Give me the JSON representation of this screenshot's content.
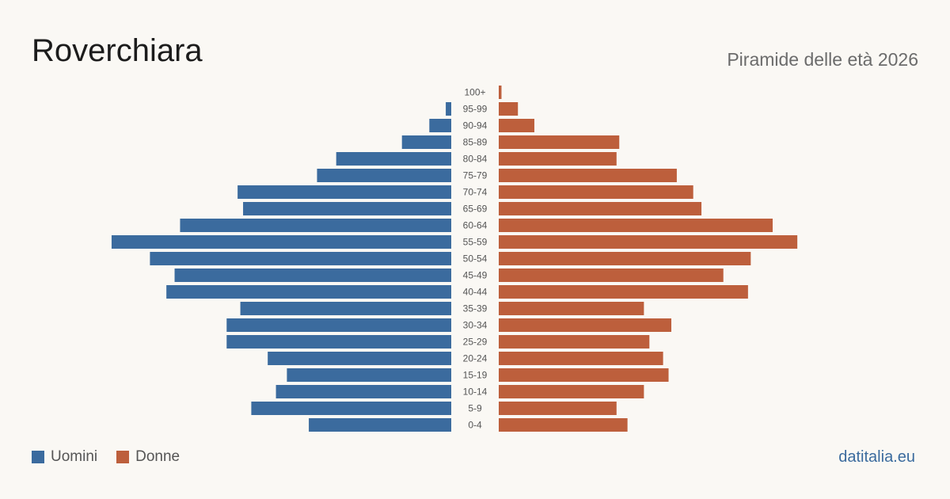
{
  "header": {
    "title": "Roverchiara",
    "subtitle": "Piramide delle età 2026"
  },
  "legend": {
    "men_label": "Uomini",
    "women_label": "Donne"
  },
  "footer": {
    "brand": "datitalia.eu"
  },
  "colors": {
    "men": "#3b6b9e",
    "women": "#bd5f3c",
    "label": "#555555"
  },
  "chart_data": {
    "type": "bar",
    "orientation": "horizontal-pyramid",
    "title": "Roverchiara",
    "subtitle": "Piramide delle età 2026",
    "categories": [
      "100+",
      "95-99",
      "90-94",
      "85-89",
      "80-84",
      "75-79",
      "70-74",
      "65-69",
      "60-64",
      "55-59",
      "50-54",
      "45-49",
      "40-44",
      "35-39",
      "30-34",
      "25-29",
      "20-24",
      "15-19",
      "10-14",
      "5-9",
      "0-4"
    ],
    "series": [
      {
        "name": "Uomini",
        "values": [
          0,
          2,
          8,
          18,
          42,
          49,
          78,
          76,
          99,
          124,
          110,
          101,
          104,
          77,
          82,
          82,
          67,
          60,
          64,
          73,
          52
        ]
      },
      {
        "name": "Donne",
        "values": [
          1,
          7,
          13,
          44,
          43,
          65,
          71,
          74,
          100,
          109,
          92,
          82,
          91,
          53,
          63,
          55,
          60,
          62,
          53,
          43,
          47
        ]
      }
    ],
    "legend": "bottom-left",
    "grid": false
  }
}
